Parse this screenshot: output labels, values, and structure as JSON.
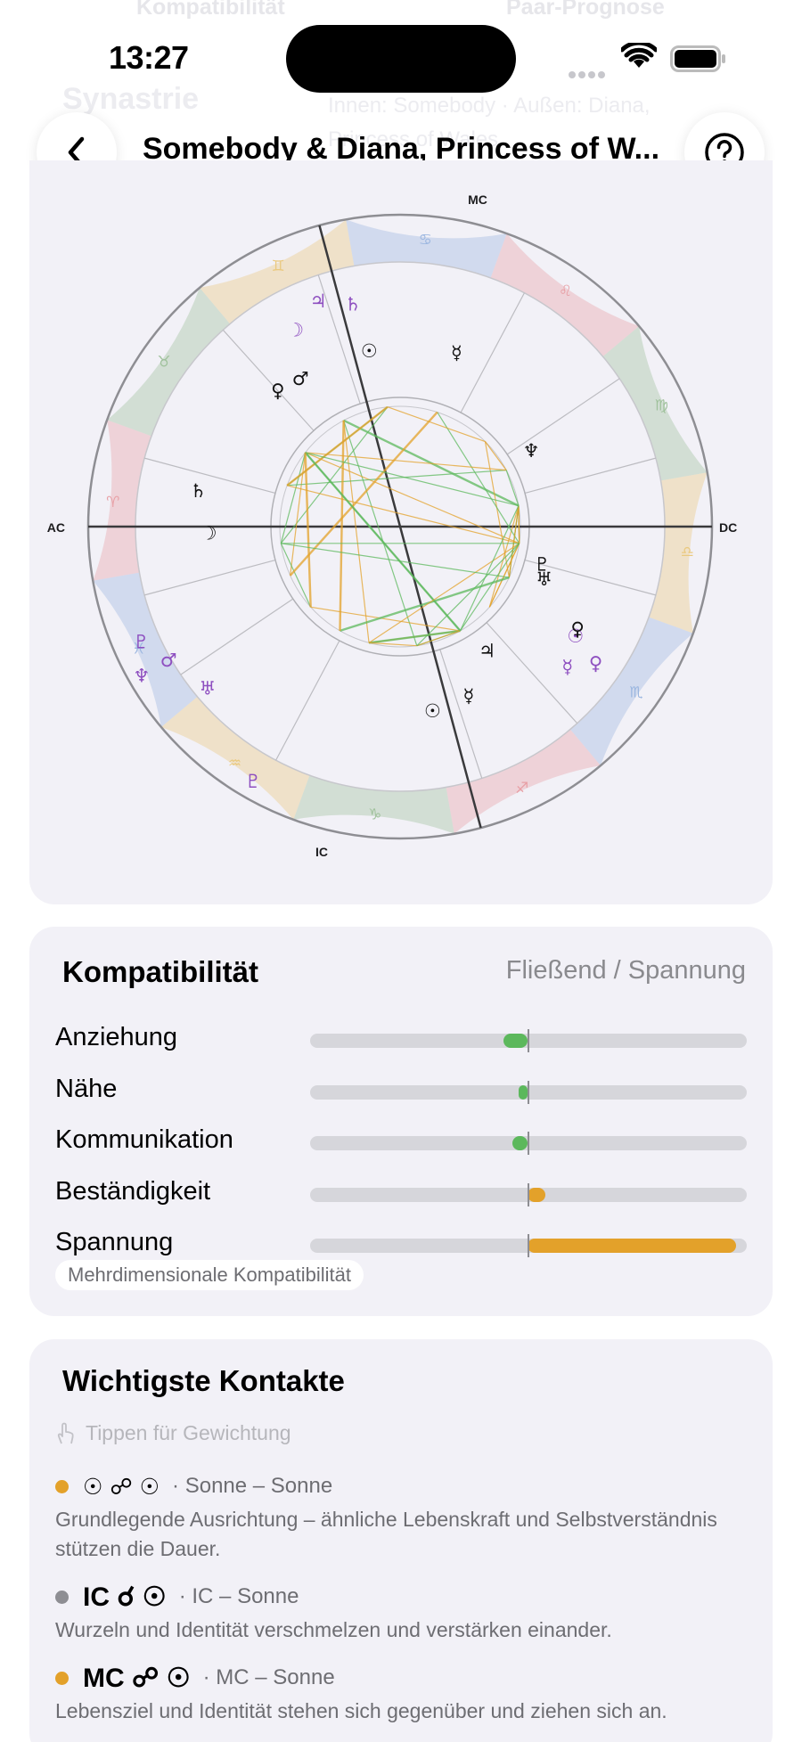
{
  "ghost": {
    "tabs": [
      "Kompatibilität",
      "Paar-Prognose"
    ],
    "title": "Synastrie",
    "subtitle": "Innen: Somebody · Außen: Diana, Princess of Wales"
  },
  "status": {
    "time": "13:27"
  },
  "nav": {
    "title": "Somebody & Diana, Princess of W...",
    "back_icon": "chevron-left-icon",
    "help_icon": "question-circle-icon"
  },
  "chart": {
    "angle_labels": {
      "mc": "MC",
      "ic": "IC",
      "ac": "AC",
      "dc": "DC"
    },
    "zodiac": [
      "♈",
      "♉",
      "♊",
      "♋",
      "♌",
      "♍",
      "♎",
      "♏",
      "♐",
      "♑",
      "♒",
      "♓"
    ],
    "colors": {
      "fire": "#e8a0a6",
      "earth": "#9fc19b",
      "air": "#eac97f",
      "water": "#9bb6e0"
    },
    "outer_planets": [
      "☽",
      "♃",
      "♄",
      "♆",
      "♇",
      "♂",
      "♅",
      "♇",
      "♀",
      "☿",
      "☉"
    ],
    "inner_planets": [
      "♀",
      "♂",
      "☉",
      "☿",
      "♄",
      "♆",
      "☽",
      "♅",
      "♇",
      "♀",
      "♃",
      "☿",
      "☉"
    ]
  },
  "compat": {
    "title": "Kompatibilität",
    "legend": "Fließend / Spannung",
    "colors": {
      "flowing": "#5cb85c",
      "tension": "#e3a12a"
    },
    "metrics": [
      {
        "label": "Anziehung",
        "value": -0.11,
        "kind": "flowing"
      },
      {
        "label": "Nähe",
        "value": -0.03,
        "kind": "flowing"
      },
      {
        "label": "Kommunikation",
        "value": -0.07,
        "kind": "flowing"
      },
      {
        "label": "Beständigkeit",
        "value": 0.08,
        "kind": "tension"
      },
      {
        "label": "Spannung",
        "value": 0.96,
        "kind": "tension"
      }
    ],
    "pill": "Mehrdimensionale Kompatibilität"
  },
  "contacts": {
    "title": "Wichtigste Kontakte",
    "hint": "Tippen für Gewichtung",
    "hint_icon": "hand-tap-icon",
    "items": [
      {
        "glyphs": "☉ ☍ ☉",
        "pair": "· Sonne – Sonne",
        "desc": "Grundlegende Ausrichtung – ähnliche Lebenskraft und Selbstverständnis stützen die Dauer.",
        "color": "#e3a12a",
        "big": false
      },
      {
        "glyphs": "IC ☌ ☉",
        "pair": "· IC – Sonne",
        "desc": "Wurzeln und Identität verschmelzen und verstärken einander.",
        "color": "#8e8e93",
        "big": true
      },
      {
        "glyphs": "MC ☍ ☉",
        "pair": "· MC – Sonne",
        "desc": "Lebensziel und Identität stehen sich gegenüber und ziehen sich an.",
        "color": "#e3a12a",
        "big": true
      }
    ]
  }
}
